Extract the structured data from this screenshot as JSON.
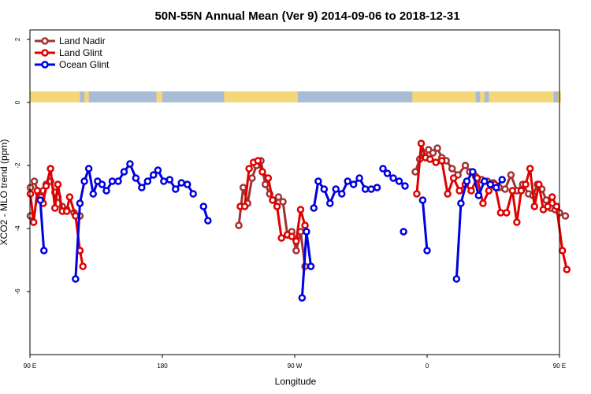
{
  "chart_data": {
    "type": "line",
    "title": "50N-55N Annual Mean (Ver 9)   2014-09-06 to 2018-12-31",
    "xlabel": "Longitude",
    "ylabel": "XCO2 - MLO trend (ppm)",
    "xlim": [
      90,
      450
    ],
    "ylim": [
      -8,
      2.3
    ],
    "x_ticks": [
      {
        "value": 90,
        "label": "90 E"
      },
      {
        "value": 180,
        "label": "180"
      },
      {
        "value": 270,
        "label": "90 W"
      },
      {
        "value": 360,
        "label": "0"
      },
      {
        "value": 450,
        "label": "90 E"
      },
      {
        "value": 540,
        "label": "180"
      }
    ],
    "y_ticks": [
      {
        "value": 2,
        "label": "2"
      },
      {
        "value": 0,
        "label": "0"
      },
      {
        "value": -2,
        "label": "-2"
      },
      {
        "value": -4,
        "label": "-4"
      },
      {
        "value": -6,
        "label": "-6"
      }
    ],
    "legend_position": "top-left",
    "grid": false,
    "land_ocean_band": {
      "y_top": 0.35,
      "y_bottom": 0,
      "land_color": "#f5d77a",
      "ocean_color": "#a8bcd6"
    },
    "series": [
      {
        "name": "Land Nadir",
        "color": "#a03232",
        "segments": [
          [
            [
              90.3,
              -2.7
            ],
            [
              93,
              -2.5
            ],
            [
              96,
              -2.9
            ],
            [
              99,
              -2.8
            ],
            [
              101,
              -2.6
            ],
            [
              104,
              -2.5
            ],
            [
              107,
              -2.85
            ],
            [
              109,
              -3.0
            ],
            [
              112,
              -3.3
            ],
            [
              115,
              -3.4
            ],
            [
              120,
              -3.5
            ],
            [
              124,
              -3.6
            ]
          ],
          [
            [
              232,
              -3.9
            ],
            [
              235,
              -2.7
            ],
            [
              238,
              -3.2
            ],
            [
              241,
              -2.4
            ],
            [
              244,
              -2.0
            ],
            [
              247,
              -1.85
            ],
            [
              250,
              -2.6
            ],
            [
              253,
              -2.9
            ],
            [
              256,
              -3.1
            ],
            [
              259,
              -3.0
            ],
            [
              262,
              -3.15
            ],
            [
              265,
              -4.2
            ],
            [
              268,
              -4.1
            ],
            [
              271,
              -4.7
            ],
            [
              274,
              -4.1
            ],
            [
              277,
              -5.2
            ]
          ],
          [
            [
              352,
              -2.2
            ],
            [
              355,
              -1.8
            ],
            [
              358,
              -1.6
            ],
            [
              361,
              -1.5
            ],
            [
              364,
              -1.6
            ],
            [
              367,
              -1.45
            ],
            [
              370,
              -1.75
            ],
            [
              373,
              -1.85
            ],
            [
              377,
              -2.1
            ],
            [
              381,
              -2.3
            ],
            [
              386,
              -2.0
            ],
            [
              389,
              -2.2
            ],
            [
              393,
              -2.35
            ],
            [
              397,
              -2.45
            ],
            [
              401,
              -2.5
            ],
            [
              405,
              -2.55
            ],
            [
              409,
              -2.7
            ],
            [
              413,
              -2.75
            ],
            [
              417,
              -2.3
            ],
            [
              421,
              -2.8
            ],
            [
              425,
              -2.6
            ],
            [
              429,
              -2.9
            ],
            [
              432,
              -2.95
            ],
            [
              435,
              -2.6
            ],
            [
              438,
              -2.75
            ],
            [
              441,
              -3.1
            ],
            [
              444,
              -3.35
            ],
            [
              447,
              -3.4
            ],
            [
              450,
              -3.5
            ],
            [
              454,
              -3.6
            ]
          ],
          [
            [
              90.3,
              -3.6
            ]
          ]
        ]
      },
      {
        "name": "Land Glint",
        "color": "#e00000",
        "segments": [
          [
            [
              90.3,
              -2.9
            ],
            [
              92.5,
              -3.8
            ],
            [
              95,
              -2.8
            ],
            [
              97.5,
              -3.0
            ],
            [
              99,
              -3.2
            ],
            [
              101,
              -2.65
            ],
            [
              104,
              -2.1
            ],
            [
              107,
              -3.35
            ],
            [
              109,
              -2.6
            ],
            [
              112,
              -3.45
            ],
            [
              115,
              -3.45
            ],
            [
              117,
              -3.0
            ],
            [
              121,
              -3.6
            ],
            [
              124,
              -4.7
            ],
            [
              126,
              -5.2
            ]
          ],
          [
            [
              233,
              -3.3
            ],
            [
              236,
              -3.3
            ],
            [
              239,
              -2.1
            ],
            [
              242,
              -1.9
            ],
            [
              245,
              -1.85
            ],
            [
              248,
              -2.2
            ],
            [
              252,
              -2.4
            ],
            [
              255,
              -3.1
            ],
            [
              258,
              -3.3
            ],
            [
              261,
              -4.3
            ],
            [
              265,
              -4.2
            ],
            [
              268,
              -4.25
            ],
            [
              271,
              -4.4
            ],
            [
              274,
              -3.4
            ],
            [
              277,
              -3.9
            ]
          ],
          [
            [
              353,
              -2.9
            ],
            [
              356,
              -1.3
            ],
            [
              359,
              -1.75
            ],
            [
              362,
              -1.8
            ],
            [
              366,
              -1.9
            ],
            [
              370,
              -1.85
            ],
            [
              374,
              -2.9
            ],
            [
              378,
              -2.4
            ],
            [
              382,
              -2.8
            ],
            [
              386,
              -2.6
            ],
            [
              390,
              -2.8
            ],
            [
              394,
              -2.4
            ],
            [
              398,
              -3.2
            ],
            [
              402,
              -2.8
            ],
            [
              406,
              -2.6
            ],
            [
              410,
              -3.5
            ],
            [
              414,
              -3.5
            ],
            [
              418,
              -2.8
            ],
            [
              421,
              -3.8
            ],
            [
              424,
              -2.8
            ],
            [
              427,
              -2.6
            ],
            [
              430,
              -2.1
            ],
            [
              433,
              -3.3
            ],
            [
              436,
              -2.6
            ],
            [
              439,
              -3.4
            ],
            [
              442,
              -3.3
            ],
            [
              445,
              -3.0
            ],
            [
              448,
              -3.3
            ],
            [
              452,
              -4.7
            ],
            [
              455,
              -5.3
            ]
          ]
        ]
      },
      {
        "name": "Ocean Glint",
        "color": "#0000e0",
        "segments": [
          [
            [
              97,
              -3.1
            ],
            [
              99.5,
              -4.7
            ]
          ],
          [
            [
              121,
              -5.6
            ],
            [
              124,
              -3.2
            ],
            [
              127,
              -2.5
            ],
            [
              130,
              -2.1
            ],
            [
              133,
              -2.9
            ],
            [
              136,
              -2.5
            ],
            [
              139,
              -2.6
            ],
            [
              142,
              -2.8
            ],
            [
              146,
              -2.5
            ],
            [
              150,
              -2.5
            ],
            [
              154,
              -2.2
            ],
            [
              158,
              -1.95
            ],
            [
              162,
              -2.4
            ],
            [
              166,
              -2.7
            ],
            [
              170,
              -2.5
            ],
            [
              174,
              -2.3
            ],
            [
              177,
              -2.15
            ],
            [
              181,
              -2.5
            ],
            [
              185,
              -2.45
            ],
            [
              189,
              -2.75
            ],
            [
              193,
              -2.55
            ],
            [
              197,
              -2.6
            ],
            [
              201,
              -2.9
            ]
          ],
          [
            [
              208,
              -3.3
            ],
            [
              211,
              -3.75
            ]
          ],
          [
            [
              275,
              -6.2
            ],
            [
              278,
              -4.1
            ],
            [
              281,
              -5.2
            ]
          ],
          [
            [
              283,
              -3.35
            ],
            [
              286,
              -2.5
            ],
            [
              290,
              -2.75
            ],
            [
              294,
              -3.2
            ],
            [
              298,
              -2.75
            ],
            [
              302,
              -2.9
            ],
            [
              306,
              -2.5
            ],
            [
              310,
              -2.6
            ],
            [
              314,
              -2.4
            ],
            [
              318,
              -2.75
            ],
            [
              322,
              -2.75
            ],
            [
              326,
              -2.7
            ]
          ],
          [
            [
              330,
              -2.1
            ],
            [
              333,
              -2.25
            ],
            [
              337,
              -2.4
            ],
            [
              341,
              -2.5
            ],
            [
              345,
              -2.65
            ]
          ],
          [
            [
              344,
              -4.1
            ]
          ],
          [
            [
              357,
              -3.1
            ],
            [
              360,
              -4.7
            ]
          ],
          [
            [
              380,
              -5.6
            ],
            [
              383,
              -3.2
            ],
            [
              387,
              -2.5
            ],
            [
              391,
              -2.2
            ],
            [
              395,
              -2.95
            ],
            [
              399,
              -2.5
            ],
            [
              403,
              -2.6
            ],
            [
              407,
              -2.7
            ],
            [
              411,
              -2.45
            ]
          ]
        ]
      }
    ]
  }
}
